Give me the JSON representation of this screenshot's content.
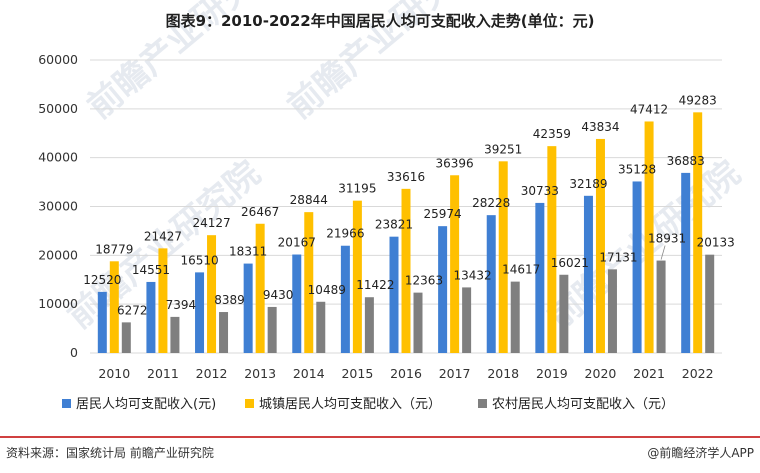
{
  "footer": {
    "source": "资料来源：国家统计局 前瞻产业研究院",
    "brand": "@前瞻经济学人APP"
  },
  "watermark": {
    "text": "前瞻产业研究院"
  },
  "colors": {
    "series_1": "#3f7fd3",
    "series_2": "#ffc000",
    "series_3": "#7f7f7f",
    "gridline": "#d9d9d9",
    "footer_rule": "#c00000",
    "watermark": "#e6eaf0"
  },
  "chart_data": {
    "type": "bar",
    "title": "图表9：2010-2022年中国居民人均可支配收入走势(单位：元)",
    "categories": [
      "2010",
      "2011",
      "2012",
      "2013",
      "2014",
      "2015",
      "2016",
      "2017",
      "2018",
      "2019",
      "2020",
      "2021",
      "2022"
    ],
    "series": [
      {
        "name": "居民人均可支配收入(元)",
        "values": [
          12520,
          14551,
          16510,
          18311,
          20167,
          21966,
          23821,
          25974,
          28228,
          30733,
          32189,
          35128,
          36883
        ]
      },
      {
        "name": "城镇居民人均可支配收入（元）",
        "values": [
          18779,
          21427,
          24127,
          26467,
          28844,
          31195,
          33616,
          36396,
          39251,
          42359,
          43834,
          47412,
          49283
        ]
      },
      {
        "name": "农村居民人均可支配收入（元）",
        "values": [
          6272,
          7394,
          8389,
          9430,
          10489,
          11422,
          12363,
          13432,
          14617,
          16021,
          17131,
          18931,
          20133
        ]
      }
    ],
    "yticks": [
      "0",
      "10000",
      "20000",
      "30000",
      "40000",
      "50000",
      "60000"
    ],
    "ylim": [
      0,
      60000
    ],
    "grid": true,
    "legend_position": "bottom",
    "data_labels": true
  }
}
